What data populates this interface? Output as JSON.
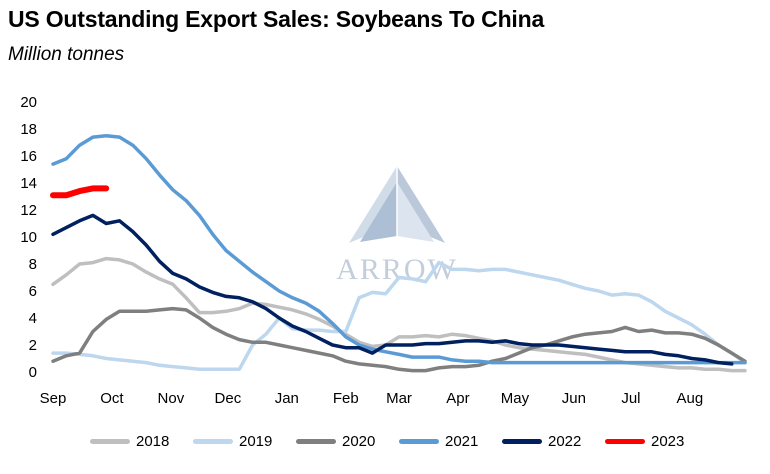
{
  "title": "US Outstanding Export Sales: Soybeans To China",
  "subtitle": "Million tonnes",
  "watermark": {
    "text": "ARROW"
  },
  "chart_data": {
    "type": "line",
    "title": "US Outstanding Export Sales: Soybeans To China",
    "subtitle": "Million tonnes",
    "xlabel": "",
    "ylabel": "",
    "x_unit": "weeks from start of September (marketing year)",
    "xlim": [
      0,
      52
    ],
    "ylim": [
      0,
      20
    ],
    "y_ticks": [
      0,
      2,
      4,
      6,
      8,
      10,
      12,
      14,
      16,
      18,
      20
    ],
    "x_ticks": [
      {
        "label": "Sep",
        "x": 0
      },
      {
        "label": "Oct",
        "x": 4.43
      },
      {
        "label": "Nov",
        "x": 8.86
      },
      {
        "label": "Dec",
        "x": 13.14
      },
      {
        "label": "Jan",
        "x": 17.57
      },
      {
        "label": "Feb",
        "x": 22.0
      },
      {
        "label": "Mar",
        "x": 26.0
      },
      {
        "label": "Apr",
        "x": 30.43
      },
      {
        "label": "May",
        "x": 34.71
      },
      {
        "label": "Jun",
        "x": 39.14
      },
      {
        "label": "Jul",
        "x": 43.43
      },
      {
        "label": "Aug",
        "x": 47.86
      }
    ],
    "grid": false,
    "legend_position": "bottom",
    "series": [
      {
        "name": "2018",
        "color": "#bfbfbf",
        "points": [
          [
            0,
            6.5
          ],
          [
            1,
            7.2
          ],
          [
            2,
            8.0
          ],
          [
            3,
            8.1
          ],
          [
            4,
            8.4
          ],
          [
            5,
            8.3
          ],
          [
            6,
            8.0
          ],
          [
            7,
            7.4
          ],
          [
            8,
            6.9
          ],
          [
            9,
            6.5
          ],
          [
            10,
            5.5
          ],
          [
            11,
            4.4
          ],
          [
            12,
            4.4
          ],
          [
            13,
            4.5
          ],
          [
            14,
            4.7
          ],
          [
            15,
            5.1
          ],
          [
            16,
            5.0
          ],
          [
            17,
            4.8
          ],
          [
            18,
            4.6
          ],
          [
            19,
            4.3
          ],
          [
            20,
            3.9
          ],
          [
            21,
            3.4
          ],
          [
            22,
            2.8
          ],
          [
            23,
            2.2
          ],
          [
            24,
            1.9
          ],
          [
            25,
            2.0
          ],
          [
            26,
            2.6
          ],
          [
            27,
            2.6
          ],
          [
            28,
            2.7
          ],
          [
            29,
            2.6
          ],
          [
            30,
            2.8
          ],
          [
            31,
            2.7
          ],
          [
            32,
            2.5
          ],
          [
            33,
            2.3
          ],
          [
            34,
            2.0
          ],
          [
            35,
            1.8
          ],
          [
            36,
            1.7
          ],
          [
            37,
            1.6
          ],
          [
            38,
            1.5
          ],
          [
            39,
            1.4
          ],
          [
            40,
            1.3
          ],
          [
            41,
            1.1
          ],
          [
            42,
            0.9
          ],
          [
            43,
            0.7
          ],
          [
            44,
            0.6
          ],
          [
            45,
            0.5
          ],
          [
            46,
            0.4
          ],
          [
            47,
            0.3
          ],
          [
            48,
            0.3
          ],
          [
            49,
            0.2
          ],
          [
            50,
            0.2
          ],
          [
            51,
            0.1
          ],
          [
            52,
            0.1
          ]
        ]
      },
      {
        "name": "2019",
        "color": "#bdd7ee",
        "points": [
          [
            0,
            1.4
          ],
          [
            1,
            1.4
          ],
          [
            2,
            1.3
          ],
          [
            3,
            1.2
          ],
          [
            4,
            1.0
          ],
          [
            5,
            0.9
          ],
          [
            6,
            0.8
          ],
          [
            7,
            0.7
          ],
          [
            8,
            0.5
          ],
          [
            9,
            0.4
          ],
          [
            10,
            0.3
          ],
          [
            11,
            0.2
          ],
          [
            12,
            0.2
          ],
          [
            13,
            0.2
          ],
          [
            14,
            0.2
          ],
          [
            15,
            2.0
          ],
          [
            16,
            2.8
          ],
          [
            17,
            4.0
          ],
          [
            18,
            3.2
          ],
          [
            19,
            3.1
          ],
          [
            20,
            3.1
          ],
          [
            21,
            3.0
          ],
          [
            22,
            3.0
          ],
          [
            23,
            5.5
          ],
          [
            24,
            5.9
          ],
          [
            25,
            5.8
          ],
          [
            26,
            7.0
          ],
          [
            27,
            6.9
          ],
          [
            28,
            6.7
          ],
          [
            29,
            8.1
          ],
          [
            30,
            7.6
          ],
          [
            31,
            7.6
          ],
          [
            32,
            7.5
          ],
          [
            33,
            7.6
          ],
          [
            34,
            7.6
          ],
          [
            35,
            7.4
          ],
          [
            36,
            7.2
          ],
          [
            37,
            7.0
          ],
          [
            38,
            6.8
          ],
          [
            39,
            6.5
          ],
          [
            40,
            6.2
          ],
          [
            41,
            6.0
          ],
          [
            42,
            5.7
          ],
          [
            43,
            5.8
          ],
          [
            44,
            5.7
          ],
          [
            45,
            5.2
          ],
          [
            46,
            4.5
          ],
          [
            47,
            4.0
          ],
          [
            48,
            3.5
          ],
          [
            49,
            2.8
          ],
          [
            50,
            2.0
          ],
          [
            51,
            1.4
          ],
          [
            52,
            0.7
          ]
        ]
      },
      {
        "name": "2020",
        "color": "#7f7f7f",
        "points": [
          [
            0,
            0.8
          ],
          [
            1,
            1.2
          ],
          [
            2,
            1.4
          ],
          [
            3,
            3.0
          ],
          [
            4,
            3.9
          ],
          [
            5,
            4.5
          ],
          [
            6,
            4.5
          ],
          [
            7,
            4.5
          ],
          [
            8,
            4.6
          ],
          [
            9,
            4.7
          ],
          [
            10,
            4.6
          ],
          [
            11,
            4.0
          ],
          [
            12,
            3.3
          ],
          [
            13,
            2.8
          ],
          [
            14,
            2.4
          ],
          [
            15,
            2.2
          ],
          [
            16,
            2.2
          ],
          [
            17,
            2.0
          ],
          [
            18,
            1.8
          ],
          [
            19,
            1.6
          ],
          [
            20,
            1.4
          ],
          [
            21,
            1.2
          ],
          [
            22,
            0.8
          ],
          [
            23,
            0.6
          ],
          [
            24,
            0.5
          ],
          [
            25,
            0.4
          ],
          [
            26,
            0.2
          ],
          [
            27,
            0.1
          ],
          [
            28,
            0.1
          ],
          [
            29,
            0.3
          ],
          [
            30,
            0.4
          ],
          [
            31,
            0.4
          ],
          [
            32,
            0.5
          ],
          [
            33,
            0.8
          ],
          [
            34,
            1.0
          ],
          [
            35,
            1.4
          ],
          [
            36,
            1.8
          ],
          [
            37,
            2.0
          ],
          [
            38,
            2.3
          ],
          [
            39,
            2.6
          ],
          [
            40,
            2.8
          ],
          [
            41,
            2.9
          ],
          [
            42,
            3.0
          ],
          [
            43,
            3.3
          ],
          [
            44,
            3.0
          ],
          [
            45,
            3.1
          ],
          [
            46,
            2.9
          ],
          [
            47,
            2.9
          ],
          [
            48,
            2.8
          ],
          [
            49,
            2.5
          ],
          [
            50,
            2.0
          ],
          [
            51,
            1.4
          ],
          [
            52,
            0.8
          ]
        ]
      },
      {
        "name": "2021",
        "color": "#5b9bd5",
        "points": [
          [
            0,
            15.4
          ],
          [
            1,
            15.8
          ],
          [
            2,
            16.8
          ],
          [
            3,
            17.4
          ],
          [
            4,
            17.5
          ],
          [
            5,
            17.4
          ],
          [
            6,
            16.8
          ],
          [
            7,
            15.8
          ],
          [
            8,
            14.6
          ],
          [
            9,
            13.5
          ],
          [
            10,
            12.7
          ],
          [
            11,
            11.6
          ],
          [
            12,
            10.2
          ],
          [
            13,
            9.0
          ],
          [
            14,
            8.2
          ],
          [
            15,
            7.4
          ],
          [
            16,
            6.7
          ],
          [
            17,
            6.0
          ],
          [
            18,
            5.5
          ],
          [
            19,
            5.1
          ],
          [
            20,
            4.5
          ],
          [
            21,
            3.6
          ],
          [
            22,
            2.6
          ],
          [
            23,
            2.0
          ],
          [
            24,
            1.7
          ],
          [
            25,
            1.5
          ],
          [
            26,
            1.3
          ],
          [
            27,
            1.1
          ],
          [
            28,
            1.1
          ],
          [
            29,
            1.1
          ],
          [
            30,
            0.9
          ],
          [
            31,
            0.8
          ],
          [
            32,
            0.8
          ],
          [
            33,
            0.7
          ],
          [
            34,
            0.7
          ],
          [
            35,
            0.7
          ],
          [
            36,
            0.7
          ],
          [
            37,
            0.7
          ],
          [
            38,
            0.7
          ],
          [
            39,
            0.7
          ],
          [
            40,
            0.7
          ],
          [
            41,
            0.7
          ],
          [
            42,
            0.7
          ],
          [
            43,
            0.7
          ],
          [
            44,
            0.7
          ],
          [
            45,
            0.7
          ],
          [
            46,
            0.7
          ],
          [
            47,
            0.7
          ],
          [
            48,
            0.7
          ],
          [
            49,
            0.7
          ],
          [
            50,
            0.7
          ],
          [
            51,
            0.7
          ],
          [
            52,
            0.7
          ]
        ]
      },
      {
        "name": "2022",
        "color": "#002060",
        "points": [
          [
            0,
            10.2
          ],
          [
            1,
            10.7
          ],
          [
            2,
            11.2
          ],
          [
            3,
            11.6
          ],
          [
            4,
            11.0
          ],
          [
            5,
            11.2
          ],
          [
            6,
            10.4
          ],
          [
            7,
            9.4
          ],
          [
            8,
            8.2
          ],
          [
            9,
            7.3
          ],
          [
            10,
            6.9
          ],
          [
            11,
            6.3
          ],
          [
            12,
            5.9
          ],
          [
            13,
            5.6
          ],
          [
            14,
            5.5
          ],
          [
            15,
            5.2
          ],
          [
            16,
            4.7
          ],
          [
            17,
            4.0
          ],
          [
            18,
            3.4
          ],
          [
            19,
            3.0
          ],
          [
            20,
            2.5
          ],
          [
            21,
            2.0
          ],
          [
            22,
            1.8
          ],
          [
            23,
            1.8
          ],
          [
            24,
            1.4
          ],
          [
            25,
            2.0
          ],
          [
            26,
            2.0
          ],
          [
            27,
            2.0
          ],
          [
            28,
            2.1
          ],
          [
            29,
            2.1
          ],
          [
            30,
            2.2
          ],
          [
            31,
            2.3
          ],
          [
            32,
            2.3
          ],
          [
            33,
            2.2
          ],
          [
            34,
            2.3
          ],
          [
            35,
            2.1
          ],
          [
            36,
            2.0
          ],
          [
            37,
            2.0
          ],
          [
            38,
            2.0
          ],
          [
            39,
            1.9
          ],
          [
            40,
            1.8
          ],
          [
            41,
            1.7
          ],
          [
            42,
            1.6
          ],
          [
            43,
            1.5
          ],
          [
            44,
            1.5
          ],
          [
            45,
            1.5
          ],
          [
            46,
            1.3
          ],
          [
            47,
            1.2
          ],
          [
            48,
            1.0
          ],
          [
            49,
            0.9
          ],
          [
            50,
            0.7
          ],
          [
            51,
            0.6
          ]
        ]
      },
      {
        "name": "2023",
        "color": "#ff0000",
        "points": [
          [
            0,
            13.1
          ],
          [
            1,
            13.1
          ],
          [
            2,
            13.4
          ],
          [
            3,
            13.6
          ],
          [
            4,
            13.6
          ]
        ]
      }
    ]
  }
}
